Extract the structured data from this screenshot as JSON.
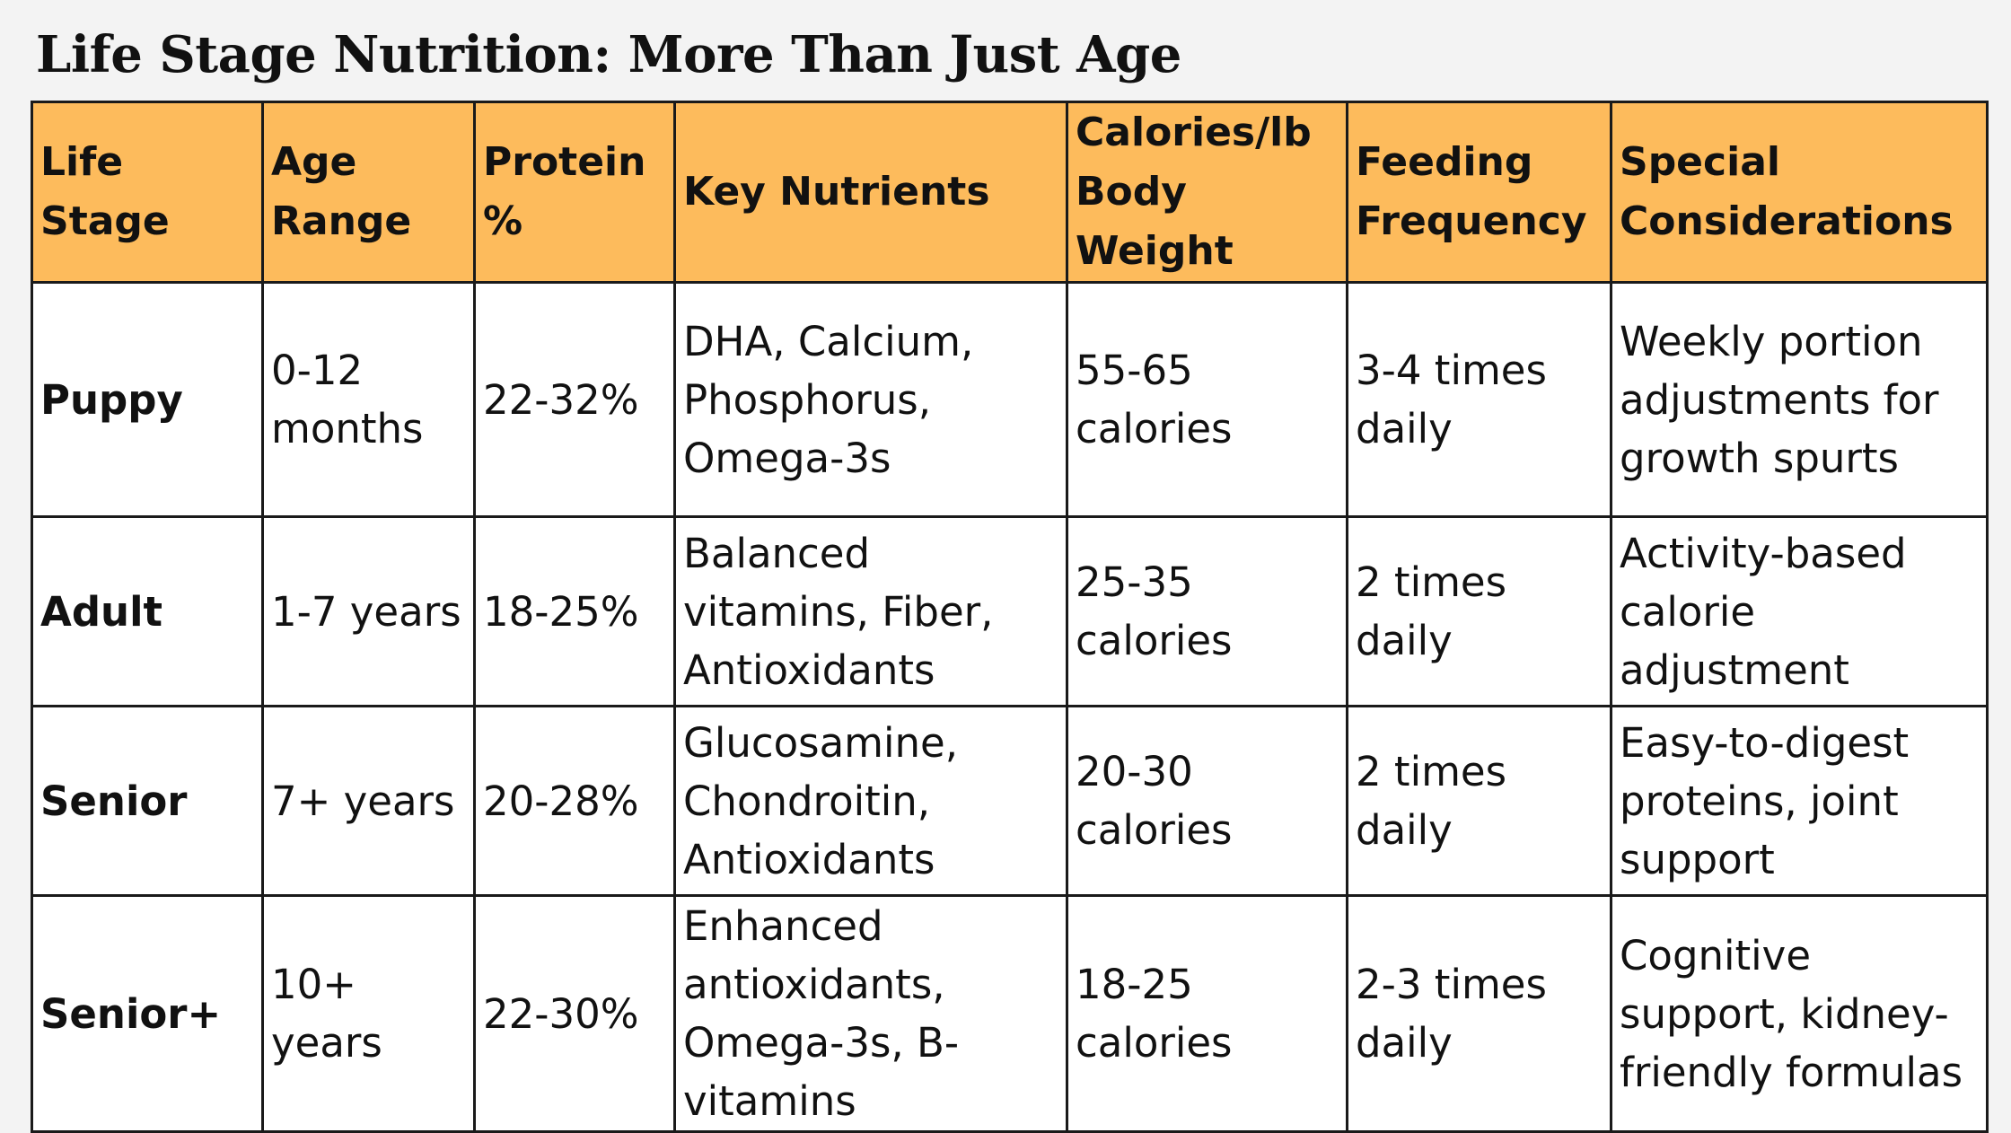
{
  "title": "Life Stage Nutrition: More Than Just Age",
  "table": {
    "headers": {
      "life_stage": "Life Stage",
      "age_range": "Age Range",
      "protein": "Protein %",
      "key_nutrients": "Key Nutrients",
      "calories": "Calories/lb Body Weight",
      "feeding": "Feeding Frequency",
      "special": "Special Considerations"
    },
    "rows": [
      {
        "life_stage": "Puppy",
        "age_range": "0-12 months",
        "protein": "22-32%",
        "key_nutrients": "DHA, Calcium, Phosphorus, Omega-3s",
        "calories": "55-65 calories",
        "feeding": "3-4 times daily",
        "special": "Weekly portion adjustments for growth spurts"
      },
      {
        "life_stage": "Adult",
        "age_range": "1-7 years",
        "protein": "18-25%",
        "key_nutrients": "Balanced vitamins, Fiber, Antioxidants",
        "calories": "25-35 calories",
        "feeding": "2 times daily",
        "special": "Activity-based calorie adjustment"
      },
      {
        "life_stage": "Senior",
        "age_range": "7+ years",
        "protein": "20-28%",
        "key_nutrients": "Glucosamine, Chondroitin, Antioxidants",
        "calories": "20-30 calories",
        "feeding": "2 times daily",
        "special": "Easy-to-digest proteins, joint support"
      },
      {
        "life_stage": "Senior+",
        "age_range": "10+ years",
        "protein": "22-30%",
        "key_nutrients": "Enhanced antioxidants, Omega-3s, B-vitamins",
        "calories": "18-25 calories",
        "feeding": "2-3 times daily",
        "special": "Cognitive support, kidney-friendly formulas"
      }
    ]
  },
  "colors": {
    "header_background": "#fdbb5c",
    "page_background": "#f3f3f3",
    "cell_background": "#ffffff",
    "border": "#1a1a1a"
  }
}
